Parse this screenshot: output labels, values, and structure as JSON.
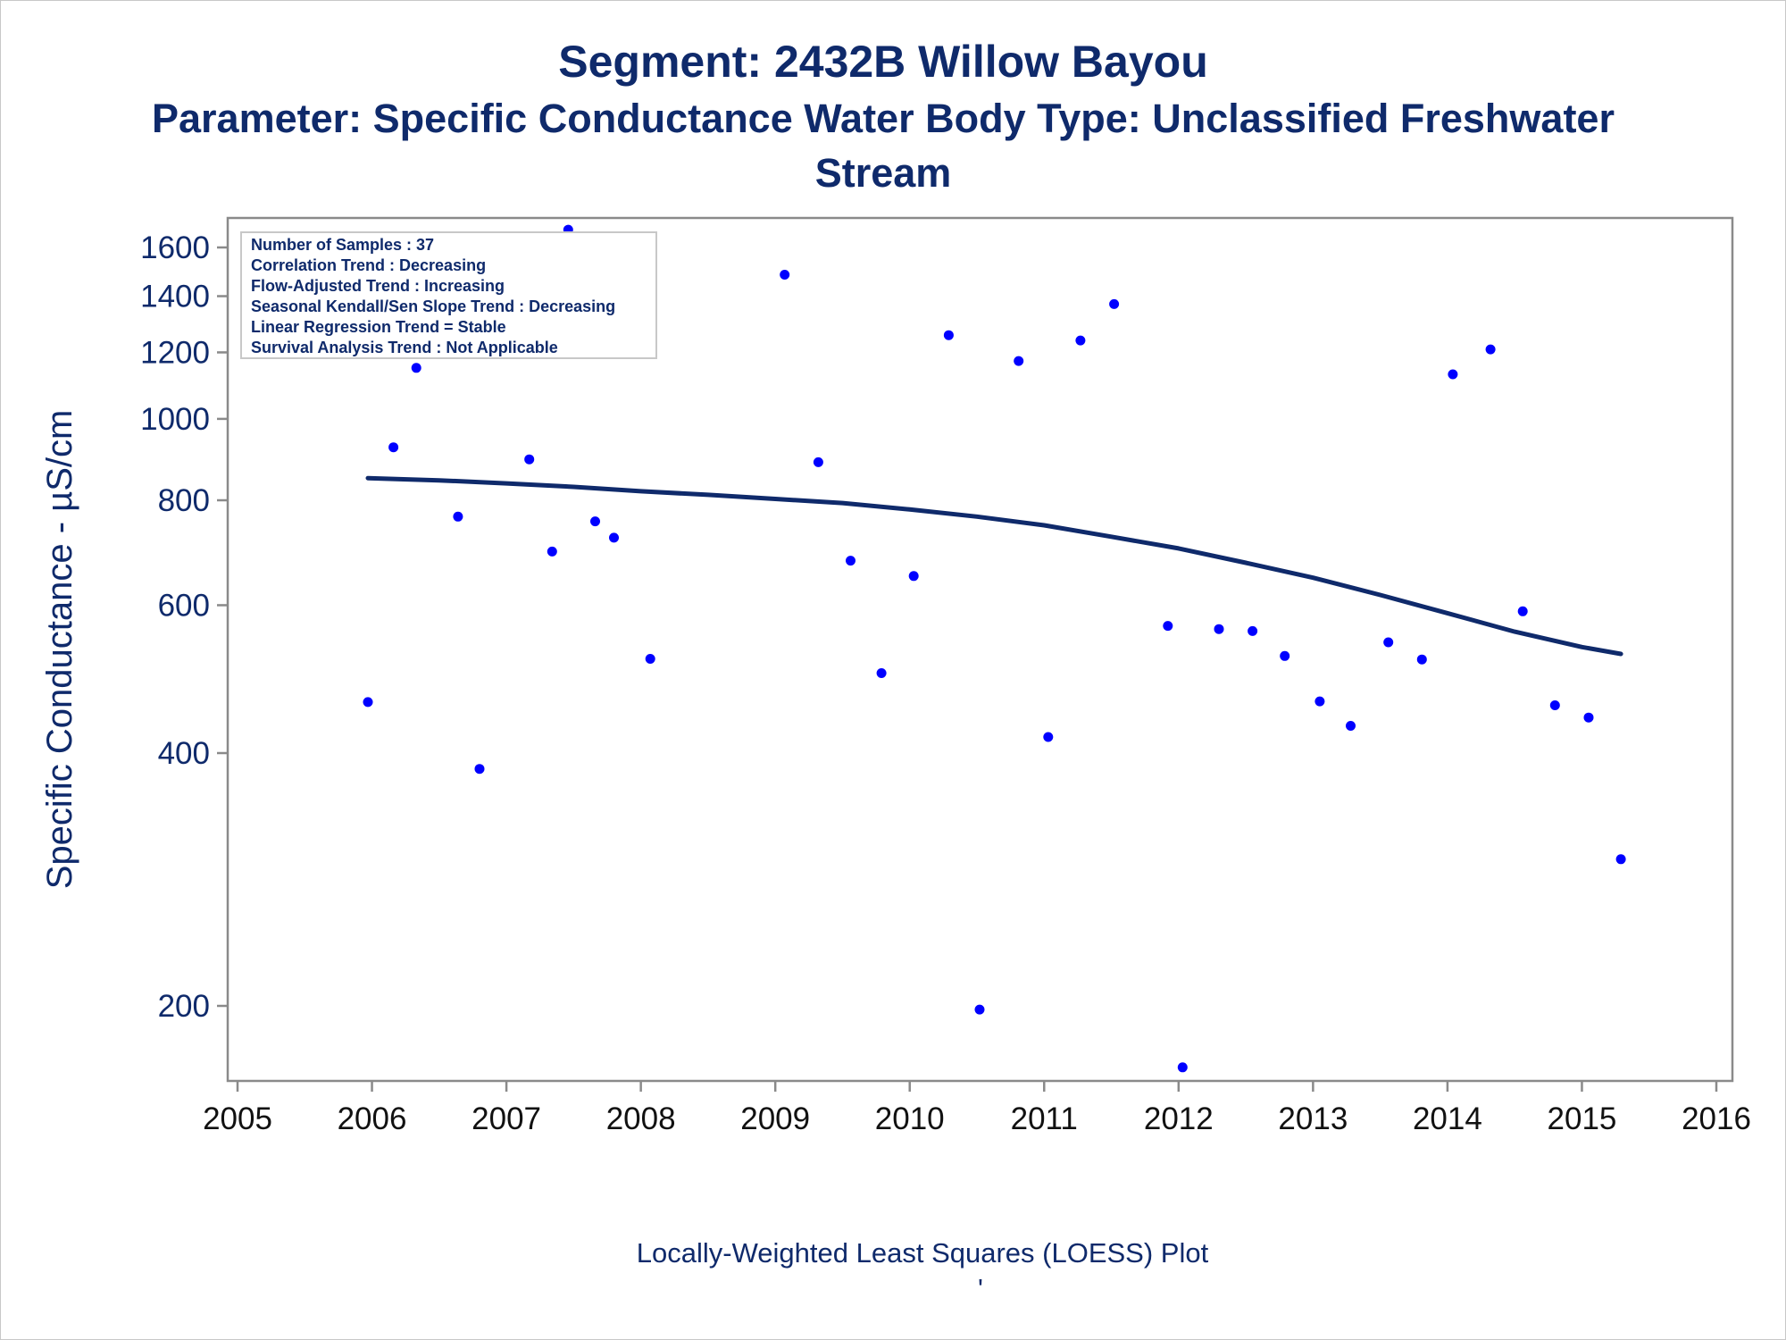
{
  "chart_data": {
    "type": "scatter",
    "title": "Segment: 2432B  Willow Bayou",
    "subtitle_lines": [
      "Parameter: Specific Conductance   Water Body Type: Unclassified Freshwater",
      "Stream"
    ],
    "ylabel": "Specific Conductance -  µS/cm",
    "xlabel": "",
    "footnote": "Locally-Weighted Least Squares (LOESS) Plot",
    "footnote_mark": "'",
    "y_scale": "log",
    "ylim": [
      160,
      1720
    ],
    "xlim": [
      2005,
      2016
    ],
    "y_ticks": [
      200,
      400,
      600,
      800,
      1000,
      1200,
      1400,
      1600
    ],
    "x_ticks": [
      2005,
      2006,
      2007,
      2008,
      2009,
      2010,
      2011,
      2012,
      2013,
      2014,
      2015,
      2016
    ],
    "grid": false,
    "legend": "none",
    "stats_box": {
      "placement": "top-left",
      "lines": [
        "Number of Samples : 37",
        "Correlation Trend : Decreasing",
        "Flow-Adjusted Trend : Increasing",
        "Seasonal Kendall/Sen Slope Trend : Decreasing",
        "Linear Regression Trend = Stable",
        "Survival Analysis Trend : Not Applicable"
      ]
    },
    "series": [
      {
        "type": "scatter",
        "color": "#0000ff",
        "points": [
          {
            "x": 2005.97,
            "y": 460
          },
          {
            "x": 2006.16,
            "y": 925
          },
          {
            "x": 2006.33,
            "y": 1150
          },
          {
            "x": 2006.64,
            "y": 765
          },
          {
            "x": 2006.8,
            "y": 383
          },
          {
            "x": 2007.17,
            "y": 895
          },
          {
            "x": 2007.34,
            "y": 695
          },
          {
            "x": 2007.46,
            "y": 1680
          },
          {
            "x": 2007.66,
            "y": 755
          },
          {
            "x": 2007.8,
            "y": 722
          },
          {
            "x": 2008.07,
            "y": 518
          },
          {
            "x": 2009.07,
            "y": 1485
          },
          {
            "x": 2009.32,
            "y": 888
          },
          {
            "x": 2009.56,
            "y": 678
          },
          {
            "x": 2009.79,
            "y": 498
          },
          {
            "x": 2010.03,
            "y": 650
          },
          {
            "x": 2010.29,
            "y": 1258
          },
          {
            "x": 2010.52,
            "y": 198
          },
          {
            "x": 2010.81,
            "y": 1172
          },
          {
            "x": 2011.03,
            "y": 418
          },
          {
            "x": 2011.27,
            "y": 1240
          },
          {
            "x": 2011.52,
            "y": 1370
          },
          {
            "x": 2011.92,
            "y": 567
          },
          {
            "x": 2012.03,
            "y": 169
          },
          {
            "x": 2012.3,
            "y": 562
          },
          {
            "x": 2012.55,
            "y": 559
          },
          {
            "x": 2012.79,
            "y": 522
          },
          {
            "x": 2013.05,
            "y": 461
          },
          {
            "x": 2013.28,
            "y": 431
          },
          {
            "x": 2013.56,
            "y": 542
          },
          {
            "x": 2013.81,
            "y": 517
          },
          {
            "x": 2014.04,
            "y": 1130
          },
          {
            "x": 2014.32,
            "y": 1210
          },
          {
            "x": 2014.56,
            "y": 590
          },
          {
            "x": 2014.8,
            "y": 456
          },
          {
            "x": 2015.05,
            "y": 441
          },
          {
            "x": 2015.29,
            "y": 299
          }
        ]
      },
      {
        "type": "line",
        "color": "#0f2a6b",
        "points": [
          {
            "x": 2005.97,
            "y": 850
          },
          {
            "x": 2006.5,
            "y": 845
          },
          {
            "x": 2007.0,
            "y": 838
          },
          {
            "x": 2007.5,
            "y": 830
          },
          {
            "x": 2008.0,
            "y": 820
          },
          {
            "x": 2008.5,
            "y": 812
          },
          {
            "x": 2009.0,
            "y": 803
          },
          {
            "x": 2009.5,
            "y": 794
          },
          {
            "x": 2010.0,
            "y": 780
          },
          {
            "x": 2010.5,
            "y": 765
          },
          {
            "x": 2011.0,
            "y": 747
          },
          {
            "x": 2011.5,
            "y": 724
          },
          {
            "x": 2012.0,
            "y": 701
          },
          {
            "x": 2012.5,
            "y": 674
          },
          {
            "x": 2013.0,
            "y": 647
          },
          {
            "x": 2013.5,
            "y": 617
          },
          {
            "x": 2014.0,
            "y": 587
          },
          {
            "x": 2014.5,
            "y": 558
          },
          {
            "x": 2015.0,
            "y": 535
          },
          {
            "x": 2015.29,
            "y": 525
          }
        ]
      }
    ]
  }
}
